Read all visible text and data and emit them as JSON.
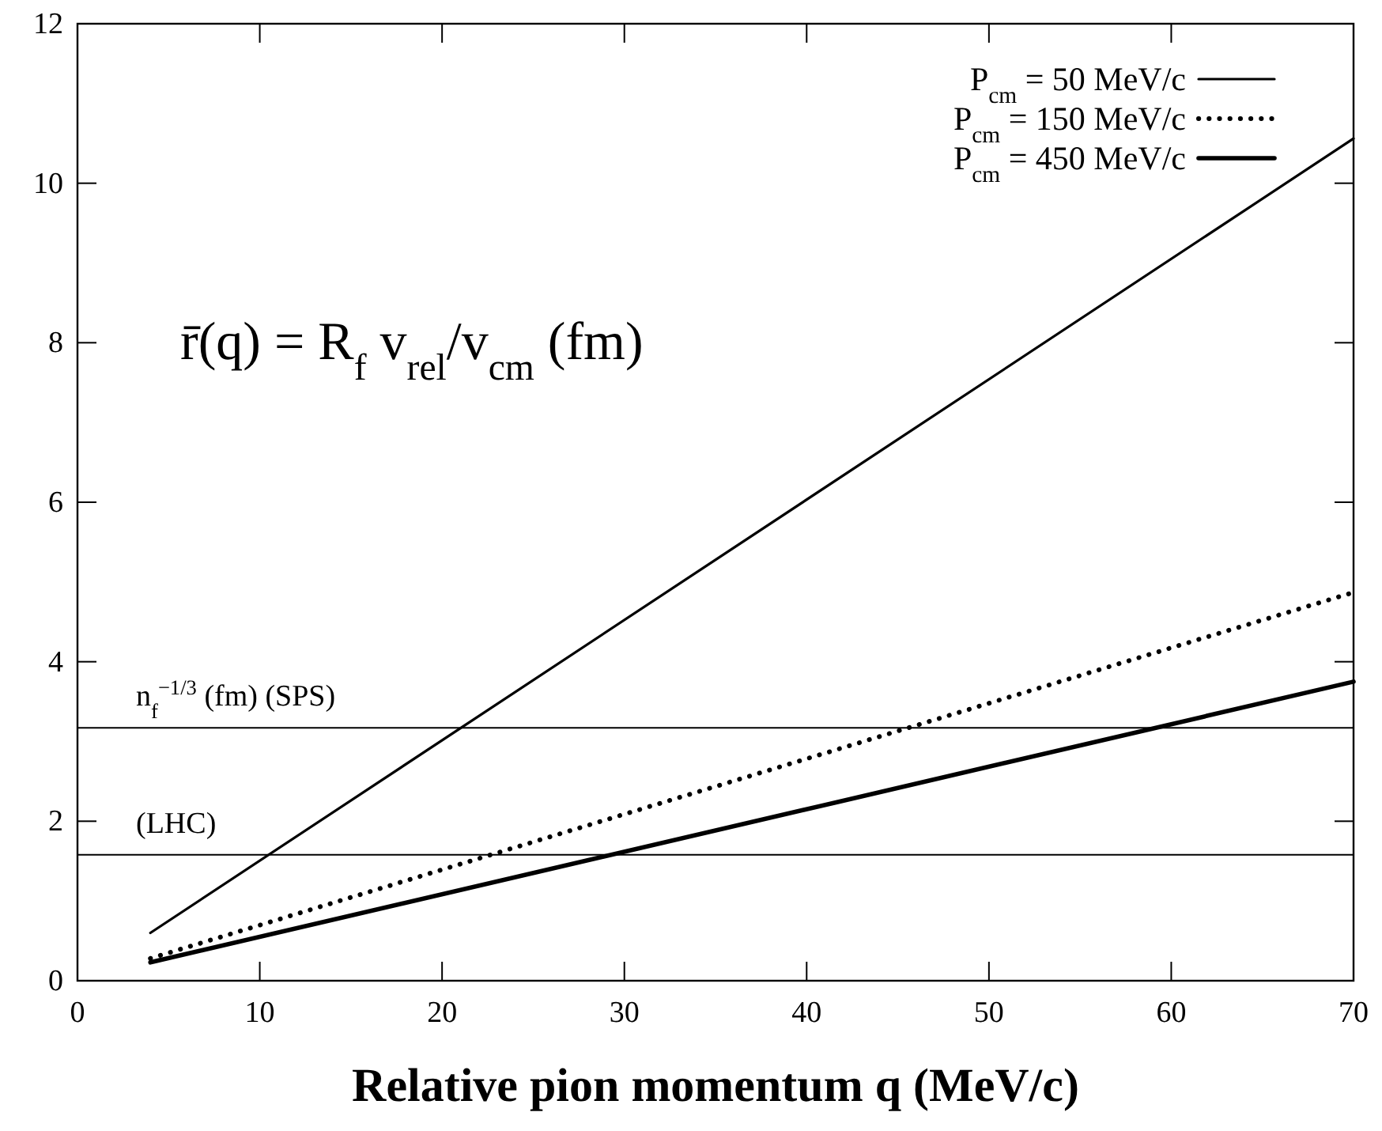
{
  "chart_data": {
    "type": "line",
    "xlabel": "Relative pion momentum q (MeV/c)",
    "x": [
      4,
      70
    ],
    "series": [
      {
        "name": "P$_{cm}$ = 50 MeV/c",
        "color": "#000000",
        "values": [
          0.6,
          10.56
        ],
        "line_style": "solid"
      },
      {
        "name": "P$_{cm}$ = 150 MeV/c",
        "color": "#000000",
        "values": [
          0.28,
          4.87
        ],
        "line_style": "dotted"
      },
      {
        "name": "P$_{cm}$ = 450 MeV/c",
        "color": "#000000",
        "values": [
          0.23,
          3.75
        ],
        "line_style": "solid"
      }
    ],
    "xlim": [
      0,
      70
    ],
    "xticks": [
      0,
      10,
      20,
      30,
      40,
      50,
      60,
      70
    ],
    "ylim": [
      0,
      12
    ],
    "yticks": [
      0,
      2,
      4,
      6,
      8,
      10,
      12
    ],
    "ref_lines": [
      {
        "axis": "y",
        "value": 3.17,
        "label": "n$_{f}$$^{−1/3}$ (fm) (SPS)",
        "color": "#000000"
      },
      {
        "axis": "y",
        "value": 1.58,
        "label": "(LHC)",
        "color": "#000000"
      }
    ],
    "annotations": [
      "r̄(q) = R$_{f}$ v$_{rel}$/v$_{cm}$ (fm)"
    ],
    "legend": "top right",
    "grid": false,
    "marker": "none"
  }
}
